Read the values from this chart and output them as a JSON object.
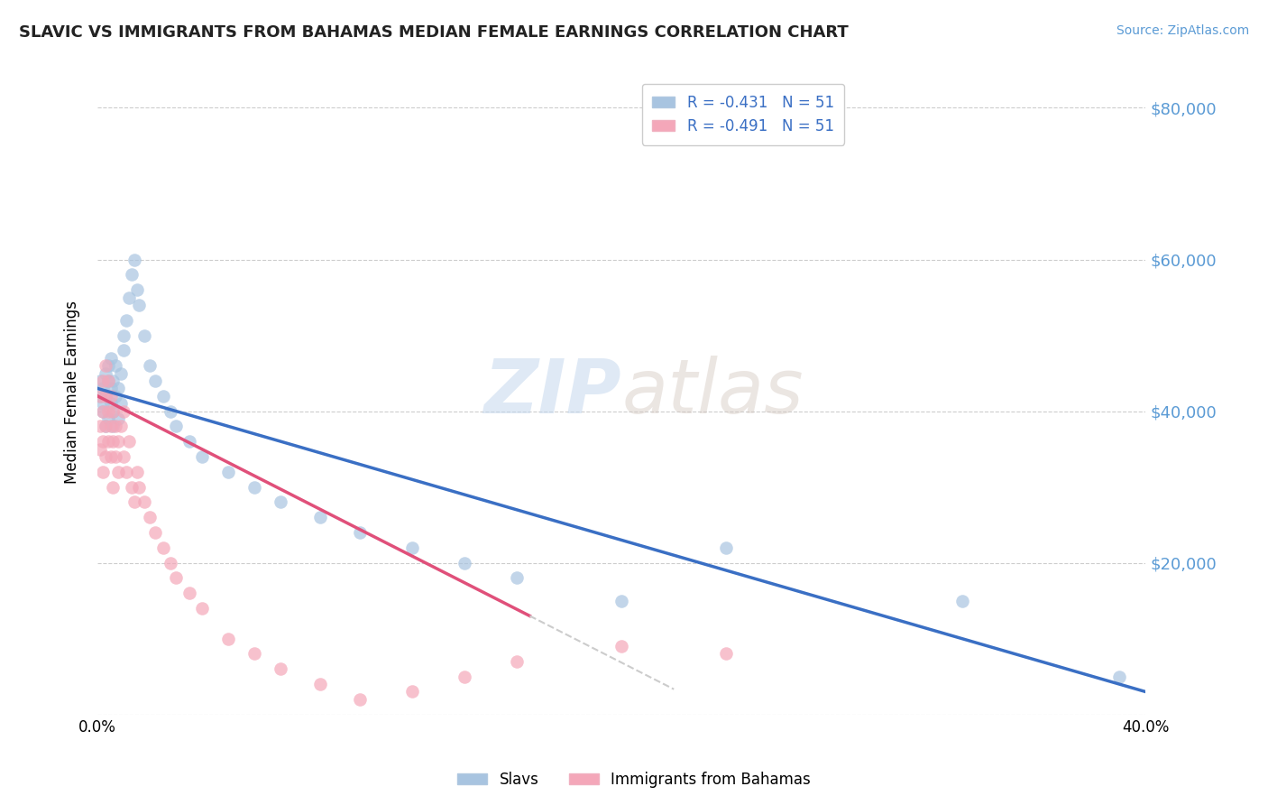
{
  "title": "SLAVIC VS IMMIGRANTS FROM BAHAMAS MEDIAN FEMALE EARNINGS CORRELATION CHART",
  "source": "Source: ZipAtlas.com",
  "xlabel": "",
  "ylabel": "Median Female Earnings",
  "legend_label1": "Slavs",
  "legend_label2": "Immigrants from Bahamas",
  "r1": -0.431,
  "n1": 51,
  "r2": -0.491,
  "n2": 51,
  "color_slavs": "#a8c4e0",
  "color_bahamas": "#f4a7b9",
  "line_color_slavs": "#3a6fc4",
  "line_color_bahamas": "#e0507a",
  "watermark_zip": "ZIP",
  "watermark_atlas": "atlas",
  "xlim": [
    0.0,
    0.4
  ],
  "ylim": [
    0,
    85000
  ],
  "yticks": [
    0,
    20000,
    40000,
    60000,
    80000
  ],
  "ytick_labels": [
    "",
    "$20,000",
    "$40,000",
    "$60,000",
    "$80,000"
  ],
  "xticks": [
    0.0,
    0.1,
    0.2,
    0.3,
    0.4
  ],
  "xtick_labels": [
    "0.0%",
    "",
    "",
    "",
    "40.0%"
  ],
  "slavs_x": [
    0.001,
    0.001,
    0.002,
    0.002,
    0.002,
    0.003,
    0.003,
    0.003,
    0.004,
    0.004,
    0.004,
    0.005,
    0.005,
    0.005,
    0.006,
    0.006,
    0.006,
    0.007,
    0.007,
    0.008,
    0.008,
    0.009,
    0.009,
    0.01,
    0.01,
    0.011,
    0.012,
    0.013,
    0.014,
    0.015,
    0.016,
    0.018,
    0.02,
    0.022,
    0.025,
    0.028,
    0.03,
    0.035,
    0.04,
    0.05,
    0.06,
    0.07,
    0.085,
    0.1,
    0.12,
    0.14,
    0.16,
    0.2,
    0.24,
    0.33,
    0.39
  ],
  "slavs_y": [
    42000,
    44000,
    41000,
    43000,
    40000,
    42000,
    45000,
    38000,
    44000,
    46000,
    39000,
    43000,
    41000,
    47000,
    40000,
    44000,
    38000,
    42000,
    46000,
    43000,
    39000,
    45000,
    41000,
    50000,
    48000,
    52000,
    55000,
    58000,
    60000,
    56000,
    54000,
    50000,
    46000,
    44000,
    42000,
    40000,
    38000,
    36000,
    34000,
    32000,
    30000,
    28000,
    26000,
    24000,
    22000,
    20000,
    18000,
    15000,
    22000,
    15000,
    5000
  ],
  "bahamas_x": [
    0.001,
    0.001,
    0.001,
    0.002,
    0.002,
    0.002,
    0.002,
    0.003,
    0.003,
    0.003,
    0.003,
    0.004,
    0.004,
    0.004,
    0.005,
    0.005,
    0.005,
    0.006,
    0.006,
    0.006,
    0.007,
    0.007,
    0.008,
    0.008,
    0.009,
    0.01,
    0.01,
    0.011,
    0.012,
    0.013,
    0.014,
    0.015,
    0.016,
    0.018,
    0.02,
    0.022,
    0.025,
    0.028,
    0.03,
    0.035,
    0.04,
    0.05,
    0.06,
    0.07,
    0.085,
    0.1,
    0.12,
    0.14,
    0.16,
    0.2,
    0.24
  ],
  "bahamas_y": [
    38000,
    35000,
    42000,
    40000,
    36000,
    44000,
    32000,
    38000,
    42000,
    34000,
    46000,
    36000,
    40000,
    44000,
    38000,
    34000,
    42000,
    36000,
    40000,
    30000,
    38000,
    34000,
    32000,
    36000,
    38000,
    34000,
    40000,
    32000,
    36000,
    30000,
    28000,
    32000,
    30000,
    28000,
    26000,
    24000,
    22000,
    20000,
    18000,
    16000,
    14000,
    10000,
    8000,
    6000,
    4000,
    2000,
    3000,
    5000,
    7000,
    9000,
    8000
  ],
  "slavs_line_x0": 0.0,
  "slavs_line_y0": 43000,
  "slavs_line_x1": 0.4,
  "slavs_line_y1": 3000,
  "bahamas_line_x0": 0.0,
  "bahamas_line_y0": 42000,
  "bahamas_line_x1": 0.165,
  "bahamas_line_y1": 13000
}
